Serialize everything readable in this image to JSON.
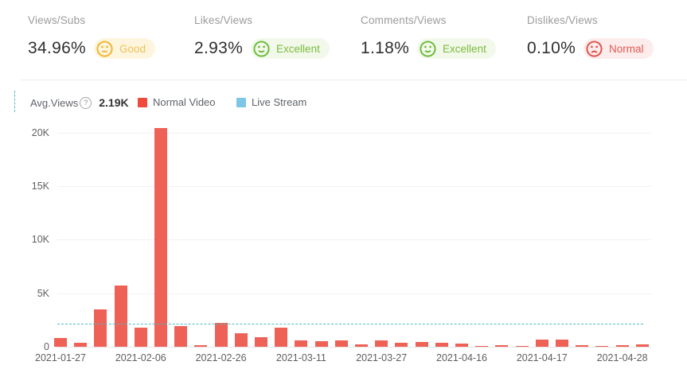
{
  "metrics": [
    {
      "label": "Views/Subs",
      "value": "34.96%",
      "rating": "Good",
      "tone": "good",
      "icon_color": "#f0b42e",
      "badge_bg": "#fdf5dd",
      "text_color": "#f2c25c"
    },
    {
      "label": "Likes/Views",
      "value": "2.93%",
      "rating": "Excellent",
      "tone": "excellent",
      "icon_color": "#69ba38",
      "badge_bg": "#f2f9ea",
      "text_color": "#7cbb3f"
    },
    {
      "label": "Comments/Views",
      "value": "1.18%",
      "rating": "Excellent",
      "tone": "excellent",
      "icon_color": "#69ba38",
      "badge_bg": "#f2f9ea",
      "text_color": "#7cbb3f"
    },
    {
      "label": "Dislikes/Views",
      "value": "0.10%",
      "rating": "Normal",
      "tone": "normal",
      "icon_color": "#df5048",
      "badge_bg": "#fdecec",
      "text_color": "#e05a52"
    }
  ],
  "legend": {
    "avg_label": "Avg.Views",
    "help_glyph": "?",
    "avg_value_text": "2.19K",
    "items": [
      {
        "label": "Normal Video",
        "color": "#f0493d"
      },
      {
        "label": "Live Stream",
        "color": "#7dc6e8"
      }
    ]
  },
  "chart_data": {
    "type": "bar",
    "title": "",
    "xlabel": "",
    "ylabel": "",
    "ylim": [
      0,
      20500
    ],
    "grid": true,
    "legend_position": "top",
    "y_ticks": [
      {
        "value": 0,
        "label": "0"
      },
      {
        "value": 5000,
        "label": "5K"
      },
      {
        "value": 10000,
        "label": "10K"
      },
      {
        "value": 15000,
        "label": "15K"
      },
      {
        "value": 20000,
        "label": "20K"
      }
    ],
    "avg_line": {
      "label": "Avg.Views",
      "value": 2190,
      "value_text": "2.19K",
      "color": "#55b9c5",
      "style": "dashed"
    },
    "series": [
      {
        "name": "Normal Video",
        "color": "#ee6156",
        "values": [
          850,
          400,
          3500,
          5700,
          1800,
          20400,
          1900,
          150,
          2250,
          1300,
          900,
          1750,
          600,
          500,
          600,
          250,
          600,
          350,
          450,
          350,
          300,
          80,
          180,
          100,
          650,
          650,
          150,
          70,
          120,
          250
        ]
      },
      {
        "name": "Live Stream",
        "color": "#7dc6e8",
        "values": []
      }
    ],
    "x_tick_labels": [
      {
        "index": 0,
        "label": "2021-01-27"
      },
      {
        "index": 4,
        "label": "2021-02-06"
      },
      {
        "index": 8,
        "label": "2021-02-26"
      },
      {
        "index": 12,
        "label": "2021-03-11"
      },
      {
        "index": 16,
        "label": "2021-03-27"
      },
      {
        "index": 20,
        "label": "2021-04-16"
      },
      {
        "index": 24,
        "label": "2021-04-17"
      },
      {
        "index": 28,
        "label": "2021-04-28"
      }
    ]
  }
}
